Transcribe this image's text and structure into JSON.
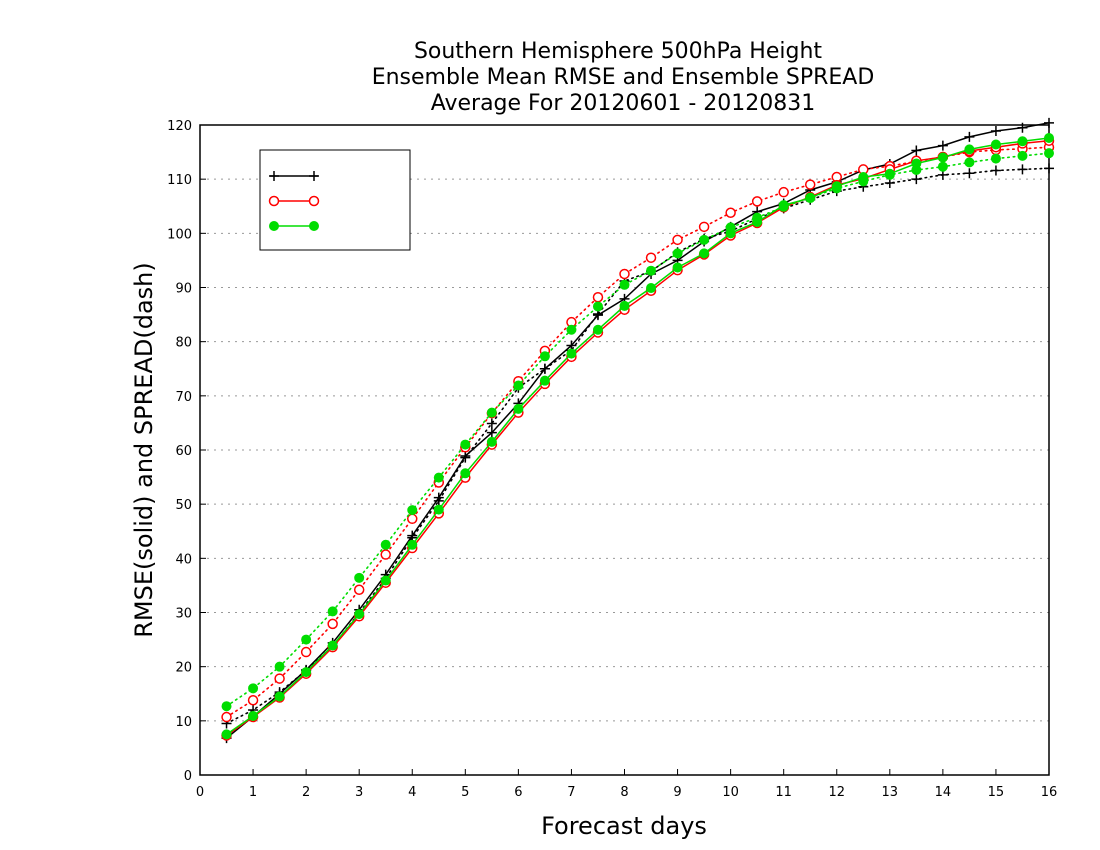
{
  "chart_data": {
    "type": "line",
    "title": [
      "Southern Hemisphere 500hPa Height",
      "Ensemble Mean RMSE and Ensemble SPREAD",
      "Average For 20120601 - 20120831"
    ],
    "xlabel": "Forecast days",
    "ylabel": "RMSE(solid) and SPREAD(dash)",
    "xlim": [
      0,
      16
    ],
    "ylim": [
      0,
      120
    ],
    "xticks": [
      0,
      1,
      2,
      3,
      4,
      5,
      6,
      7,
      8,
      9,
      10,
      11,
      12,
      13,
      14,
      15,
      16
    ],
    "yticks": [
      0,
      10,
      20,
      30,
      40,
      50,
      60,
      70,
      80,
      90,
      100,
      110,
      120
    ],
    "grid": "horizontal dotted",
    "legend_position": "top-left",
    "x": [
      0.5,
      1,
      1.5,
      2,
      2.5,
      3,
      3.5,
      4,
      4.5,
      5,
      5.5,
      6,
      6.5,
      7,
      7.5,
      8,
      8.5,
      9,
      9.5,
      10,
      10.5,
      11,
      11.5,
      12,
      12.5,
      13,
      13.5,
      14,
      14.5,
      15,
      15.5,
      16
    ],
    "series": [
      {
        "name": "",
        "color": "#000000",
        "marker": "plus",
        "rmse": [
          6.8,
          10.8,
          15.0,
          19.4,
          24.4,
          30.5,
          37.0,
          44.2,
          51.2,
          58.9,
          63.2,
          68.6,
          75.0,
          79.3,
          84.9,
          87.9,
          92.5,
          95.0,
          98.5,
          101.2,
          104.0,
          105.5,
          108.0,
          109.5,
          111.7,
          112.8,
          115.3,
          116.2,
          117.8,
          118.9,
          119.5,
          120.4
        ],
        "spread": [
          9.5,
          12.0,
          15.3,
          19.3,
          23.8,
          29.9,
          36.3,
          43.8,
          50.6,
          58.6,
          64.9,
          71.5,
          75.0,
          78.4,
          85.1,
          91.2,
          93.0,
          96.5,
          99.0,
          100.4,
          102.7,
          104.6,
          106.2,
          107.8,
          108.6,
          109.3,
          110.0,
          110.8,
          111.1,
          111.6,
          111.8,
          112.0
        ]
      },
      {
        "name": "",
        "color": "#ff0000",
        "marker": "open-circle",
        "rmse": [
          7.3,
          10.7,
          14.3,
          18.7,
          23.6,
          29.3,
          35.5,
          41.9,
          48.3,
          54.9,
          61.0,
          66.9,
          72.2,
          77.2,
          81.7,
          85.9,
          89.4,
          93.2,
          96.1,
          99.6,
          101.9,
          104.8,
          106.7,
          108.9,
          110.1,
          111.8,
          113.4,
          114.1,
          115.2,
          115.9,
          116.6,
          117.1
        ],
        "spread": [
          10.7,
          13.8,
          17.8,
          22.7,
          27.9,
          34.2,
          40.7,
          47.3,
          54.0,
          60.5,
          66.8,
          72.7,
          78.3,
          83.6,
          88.2,
          92.5,
          95.5,
          98.8,
          101.2,
          103.8,
          105.9,
          107.6,
          109.0,
          110.4,
          111.8,
          112.4,
          113.3,
          114.1,
          115.0,
          115.4,
          115.6,
          115.9
        ]
      },
      {
        "name": "",
        "color": "#00dd00",
        "marker": "filled-circle",
        "rmse": [
          7.5,
          10.9,
          14.5,
          19.0,
          23.9,
          29.7,
          35.9,
          42.5,
          49.0,
          55.7,
          61.5,
          67.6,
          72.8,
          77.8,
          82.2,
          86.6,
          89.9,
          93.7,
          96.3,
          100.0,
          102.1,
          105.2,
          106.5,
          108.7,
          110.4,
          111.0,
          112.9,
          114.0,
          115.5,
          116.4,
          117.0,
          117.6
        ],
        "spread": [
          12.7,
          16.0,
          20.0,
          25.0,
          30.2,
          36.4,
          42.5,
          48.9,
          54.9,
          61.0,
          66.9,
          71.9,
          77.3,
          82.2,
          86.5,
          90.5,
          93.1,
          96.3,
          98.8,
          101.1,
          102.9,
          104.9,
          106.6,
          108.3,
          109.6,
          110.8,
          111.7,
          112.3,
          113.1,
          113.8,
          114.3,
          114.8
        ]
      }
    ]
  }
}
